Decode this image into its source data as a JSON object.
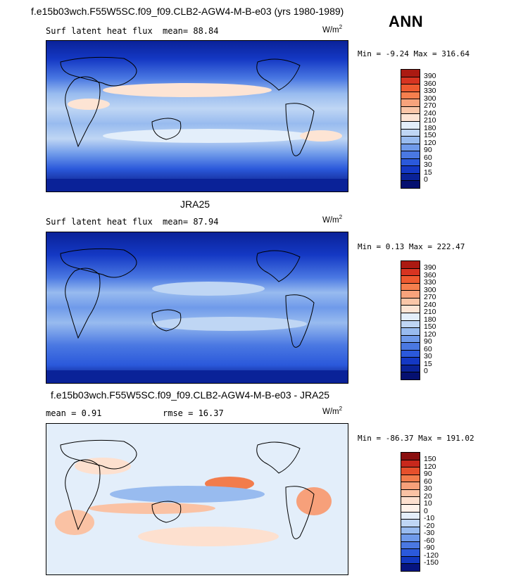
{
  "season": "ANN",
  "panels": [
    {
      "id": "model",
      "title": "f.e15b03wch.F55W5SC.f09_f09.CLB2-AGW4-M-B-e03 (yrs 1980-1989)",
      "left_label": "Surf latent heat flux",
      "stat": "mean=  88.84",
      "units_base": "W/m",
      "units_exp": "2",
      "minmax": "Min =   -9.24 Max = 316.64",
      "colorbar_labels": [
        "390",
        "360",
        "330",
        "300",
        "270",
        "240",
        "210",
        "180",
        "150",
        "120",
        "90",
        "60",
        "30",
        "15",
        "0"
      ],
      "colorbar_colors": [
        "#ab1a12",
        "#d73421",
        "#ee5a30",
        "#f57f4e",
        "#f8a37c",
        "#fac6a8",
        "#fde4d4",
        "#e3eefa",
        "#bfd6f4",
        "#98bbef",
        "#6f9aea",
        "#4a78e2",
        "#2b59db",
        "#1438c4",
        "#0a2298",
        "#051070"
      ]
    },
    {
      "id": "obs",
      "title": "JRA25",
      "left_label": "Surf latent heat flux",
      "stat": "mean=  87.94",
      "units_base": "W/m",
      "units_exp": "2",
      "minmax": "Min =   0.13 Max = 222.47",
      "colorbar_labels": [
        "390",
        "360",
        "330",
        "300",
        "270",
        "240",
        "210",
        "180",
        "150",
        "120",
        "90",
        "60",
        "30",
        "15",
        "0"
      ],
      "colorbar_colors": [
        "#ab1a12",
        "#d73421",
        "#ee5a30",
        "#f57f4e",
        "#f8a37c",
        "#fac6a8",
        "#fde4d4",
        "#e3eefa",
        "#bfd6f4",
        "#98bbef",
        "#6f9aea",
        "#4a78e2",
        "#2b59db",
        "#1438c4",
        "#0a2298",
        "#051070"
      ]
    },
    {
      "id": "diff",
      "title": "f.e15b03wch.F55W5SC.f09_f09.CLB2-AGW4-M-B-e03 - JRA25",
      "left_label": "mean =   0.91",
      "stat": "rmse =  16.37",
      "units_base": "W/m",
      "units_exp": "2",
      "minmax": "Min = -86.37 Max = 191.02",
      "colorbar_labels": [
        "150",
        "120",
        "90",
        "60",
        "30",
        "20",
        "10",
        "0",
        "-10",
        "-20",
        "-30",
        "-60",
        "-90",
        "-120",
        "-150"
      ],
      "colorbar_colors": [
        "#8a0f0f",
        "#c8281c",
        "#e6502c",
        "#f27c4c",
        "#f7a07a",
        "#fac2a4",
        "#fde0cf",
        "#fff2ea",
        "#e3eefa",
        "#bfd6f4",
        "#98bbef",
        "#6f9aea",
        "#4a78e2",
        "#2b59db",
        "#1238c0",
        "#061480"
      ]
    }
  ]
}
